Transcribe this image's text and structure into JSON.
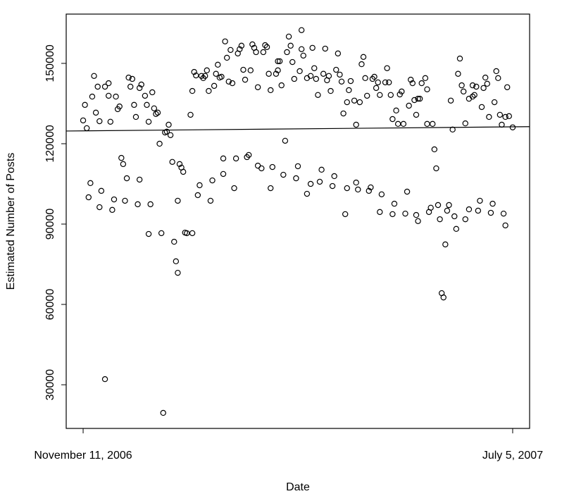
{
  "chart_data": {
    "type": "scatter",
    "title": "",
    "xlabel": "Date",
    "ylabel": "Estimated Number of Posts",
    "x_unit": "days since November 11, 2006",
    "xlim": [
      -9.3,
      245.3
    ],
    "ylim": [
      13700,
      168400
    ],
    "grid": false,
    "x_ticks": [
      {
        "value": 0,
        "label": "November 11, 2006"
      },
      {
        "value": 236,
        "label": "July 5, 2007"
      }
    ],
    "y_ticks": [
      {
        "value": 30000,
        "label": "30000"
      },
      {
        "value": 60000,
        "label": "60000"
      },
      {
        "value": 90000,
        "label": "90000"
      },
      {
        "value": 120000,
        "label": "120000"
      },
      {
        "value": 150000,
        "label": "150000"
      }
    ],
    "fit_line": {
      "intercept": 124800,
      "slope": 6.4
    },
    "points": [
      [
        6,
        145300
      ],
      [
        8,
        141300
      ],
      [
        12,
        141300
      ],
      [
        14,
        142600
      ],
      [
        5,
        137600
      ],
      [
        14,
        137900
      ],
      [
        18,
        137600
      ],
      [
        1,
        134500
      ],
      [
        7,
        131600
      ],
      [
        9,
        128400
      ],
      [
        0,
        128700
      ],
      [
        2,
        125800
      ],
      [
        15,
        128200
      ],
      [
        19,
        132900
      ],
      [
        20,
        133900
      ],
      [
        25,
        144700
      ],
      [
        27,
        144200
      ],
      [
        26,
        141300
      ],
      [
        31,
        140800
      ],
      [
        32,
        142100
      ],
      [
        34,
        137900
      ],
      [
        28,
        134500
      ],
      [
        35,
        134500
      ],
      [
        38,
        139200
      ],
      [
        39,
        133200
      ],
      [
        40,
        131100
      ],
      [
        41,
        131600
      ],
      [
        29,
        130000
      ],
      [
        36,
        128200
      ],
      [
        47,
        127100
      ],
      [
        45,
        124200
      ],
      [
        46,
        124500
      ],
      [
        48,
        123200
      ],
      [
        42,
        120000
      ],
      [
        21,
        114700
      ],
      [
        22,
        112400
      ],
      [
        4,
        105300
      ],
      [
        10,
        102400
      ],
      [
        3,
        100000
      ],
      [
        24,
        107100
      ],
      [
        31,
        106600
      ],
      [
        17,
        99200
      ],
      [
        23,
        98700
      ],
      [
        9,
        96300
      ],
      [
        16,
        95300
      ],
      [
        30,
        97400
      ],
      [
        37,
        97400
      ],
      [
        49,
        113200
      ],
      [
        53,
        112400
      ],
      [
        54,
        111100
      ],
      [
        55,
        109500
      ],
      [
        52,
        98700
      ],
      [
        36,
        86300
      ],
      [
        43,
        86600
      ],
      [
        50,
        83400
      ],
      [
        51,
        76100
      ],
      [
        52,
        71800
      ],
      [
        12,
        32100
      ],
      [
        44,
        19500
      ],
      [
        56,
        86800
      ],
      [
        59,
        130800
      ],
      [
        60,
        139700
      ],
      [
        69,
        139700
      ],
      [
        72,
        141600
      ],
      [
        61,
        146800
      ],
      [
        62,
        145500
      ],
      [
        65,
        145300
      ],
      [
        66,
        144500
      ],
      [
        67,
        145300
      ],
      [
        68,
        147400
      ],
      [
        73,
        146100
      ],
      [
        74,
        149500
      ],
      [
        75,
        144700
      ],
      [
        76,
        145000
      ],
      [
        80,
        143200
      ],
      [
        82,
        142600
      ],
      [
        79,
        152100
      ],
      [
        78,
        158200
      ],
      [
        81,
        155000
      ],
      [
        85,
        153700
      ],
      [
        86,
        155300
      ],
      [
        87,
        156600
      ],
      [
        88,
        147600
      ],
      [
        92,
        147400
      ],
      [
        89,
        143900
      ],
      [
        93,
        157100
      ],
      [
        94,
        155800
      ],
      [
        95,
        154200
      ],
      [
        99,
        154200
      ],
      [
        100,
        156800
      ],
      [
        101,
        156100
      ],
      [
        96,
        141100
      ],
      [
        103,
        140000
      ],
      [
        102,
        146100
      ],
      [
        106,
        146100
      ],
      [
        107,
        147400
      ],
      [
        107,
        150800
      ],
      [
        108,
        150800
      ],
      [
        109,
        141800
      ],
      [
        115,
        150500
      ],
      [
        116,
        144200
      ],
      [
        112,
        154200
      ],
      [
        114,
        156600
      ],
      [
        113,
        160000
      ],
      [
        119,
        147100
      ],
      [
        120,
        155300
      ],
      [
        120,
        162400
      ],
      [
        60,
        86600
      ],
      [
        57,
        86600
      ],
      [
        63,
        100800
      ],
      [
        64,
        104500
      ],
      [
        70,
        98700
      ],
      [
        71,
        106300
      ],
      [
        77,
        108700
      ],
      [
        77,
        114500
      ],
      [
        83,
        103400
      ],
      [
        84,
        114500
      ],
      [
        90,
        115000
      ],
      [
        91,
        115800
      ],
      [
        96,
        111800
      ],
      [
        98,
        110800
      ],
      [
        104,
        111300
      ],
      [
        103,
        103400
      ],
      [
        110,
        108400
      ],
      [
        111,
        121100
      ],
      [
        117,
        107100
      ],
      [
        118,
        111600
      ],
      [
        121,
        152900
      ],
      [
        126,
        155800
      ],
      [
        133,
        155500
      ],
      [
        140,
        153700
      ],
      [
        123,
        144500
      ],
      [
        125,
        145300
      ],
      [
        127,
        148200
      ],
      [
        128,
        144200
      ],
      [
        132,
        146100
      ],
      [
        134,
        143700
      ],
      [
        135,
        145300
      ],
      [
        139,
        147600
      ],
      [
        141,
        145800
      ],
      [
        142,
        143200
      ],
      [
        136,
        139700
      ],
      [
        129,
        138200
      ],
      [
        143,
        131300
      ],
      [
        146,
        140000
      ],
      [
        147,
        143400
      ],
      [
        145,
        135500
      ],
      [
        149,
        136100
      ],
      [
        152,
        135500
      ],
      [
        150,
        127100
      ],
      [
        153,
        149700
      ],
      [
        154,
        152400
      ],
      [
        155,
        144500
      ],
      [
        156,
        137900
      ],
      [
        159,
        144200
      ],
      [
        160,
        145000
      ],
      [
        161,
        140800
      ],
      [
        162,
        142900
      ],
      [
        163,
        138200
      ],
      [
        166,
        142900
      ],
      [
        168,
        142900
      ],
      [
        169,
        138200
      ],
      [
        167,
        148200
      ],
      [
        170,
        129200
      ],
      [
        172,
        132400
      ],
      [
        173,
        127400
      ],
      [
        176,
        127400
      ],
      [
        174,
        138400
      ],
      [
        175,
        139500
      ],
      [
        179,
        134200
      ],
      [
        180,
        143900
      ],
      [
        181,
        142600
      ],
      [
        182,
        136300
      ],
      [
        183,
        130800
      ],
      [
        184,
        136800
      ],
      [
        123,
        101300
      ],
      [
        125,
        105000
      ],
      [
        130,
        105800
      ],
      [
        131,
        110300
      ],
      [
        137,
        104200
      ],
      [
        138,
        107900
      ],
      [
        144,
        93700
      ],
      [
        145,
        103400
      ],
      [
        150,
        105500
      ],
      [
        151,
        102900
      ],
      [
        157,
        102400
      ],
      [
        158,
        103700
      ],
      [
        164,
        101100
      ],
      [
        171,
        97600
      ],
      [
        178,
        102100
      ],
      [
        163,
        94500
      ],
      [
        170,
        93700
      ],
      [
        177,
        93900
      ],
      [
        183,
        93400
      ],
      [
        184,
        91100
      ],
      [
        186,
        142600
      ],
      [
        188,
        144500
      ],
      [
        189,
        140300
      ],
      [
        185,
        136800
      ],
      [
        189,
        127400
      ],
      [
        192,
        127400
      ],
      [
        202,
        136100
      ],
      [
        203,
        125300
      ],
      [
        207,
        151800
      ],
      [
        206,
        146100
      ],
      [
        208,
        141800
      ],
      [
        209,
        139500
      ],
      [
        210,
        127600
      ],
      [
        212,
        136800
      ],
      [
        214,
        137600
      ],
      [
        215,
        138200
      ],
      [
        214,
        141800
      ],
      [
        216,
        141300
      ],
      [
        220,
        140800
      ],
      [
        221,
        144700
      ],
      [
        222,
        142400
      ],
      [
        219,
        133700
      ],
      [
        223,
        130000
      ],
      [
        227,
        147100
      ],
      [
        228,
        144500
      ],
      [
        226,
        135500
      ],
      [
        229,
        130800
      ],
      [
        230,
        127100
      ],
      [
        232,
        130000
      ],
      [
        234,
        130300
      ],
      [
        233,
        141100
      ],
      [
        236,
        126100
      ],
      [
        193,
        117900
      ],
      [
        194,
        110800
      ],
      [
        190,
        94500
      ],
      [
        191,
        96100
      ],
      [
        195,
        97100
      ],
      [
        196,
        91800
      ],
      [
        200,
        95000
      ],
      [
        201,
        97100
      ],
      [
        204,
        92900
      ],
      [
        205,
        88200
      ],
      [
        199,
        82400
      ],
      [
        197,
        64200
      ],
      [
        198,
        62600
      ],
      [
        210,
        91800
      ],
      [
        212,
        95500
      ],
      [
        217,
        95000
      ],
      [
        218,
        98700
      ],
      [
        224,
        94200
      ],
      [
        225,
        97600
      ],
      [
        231,
        93900
      ],
      [
        232,
        89500
      ]
    ]
  }
}
